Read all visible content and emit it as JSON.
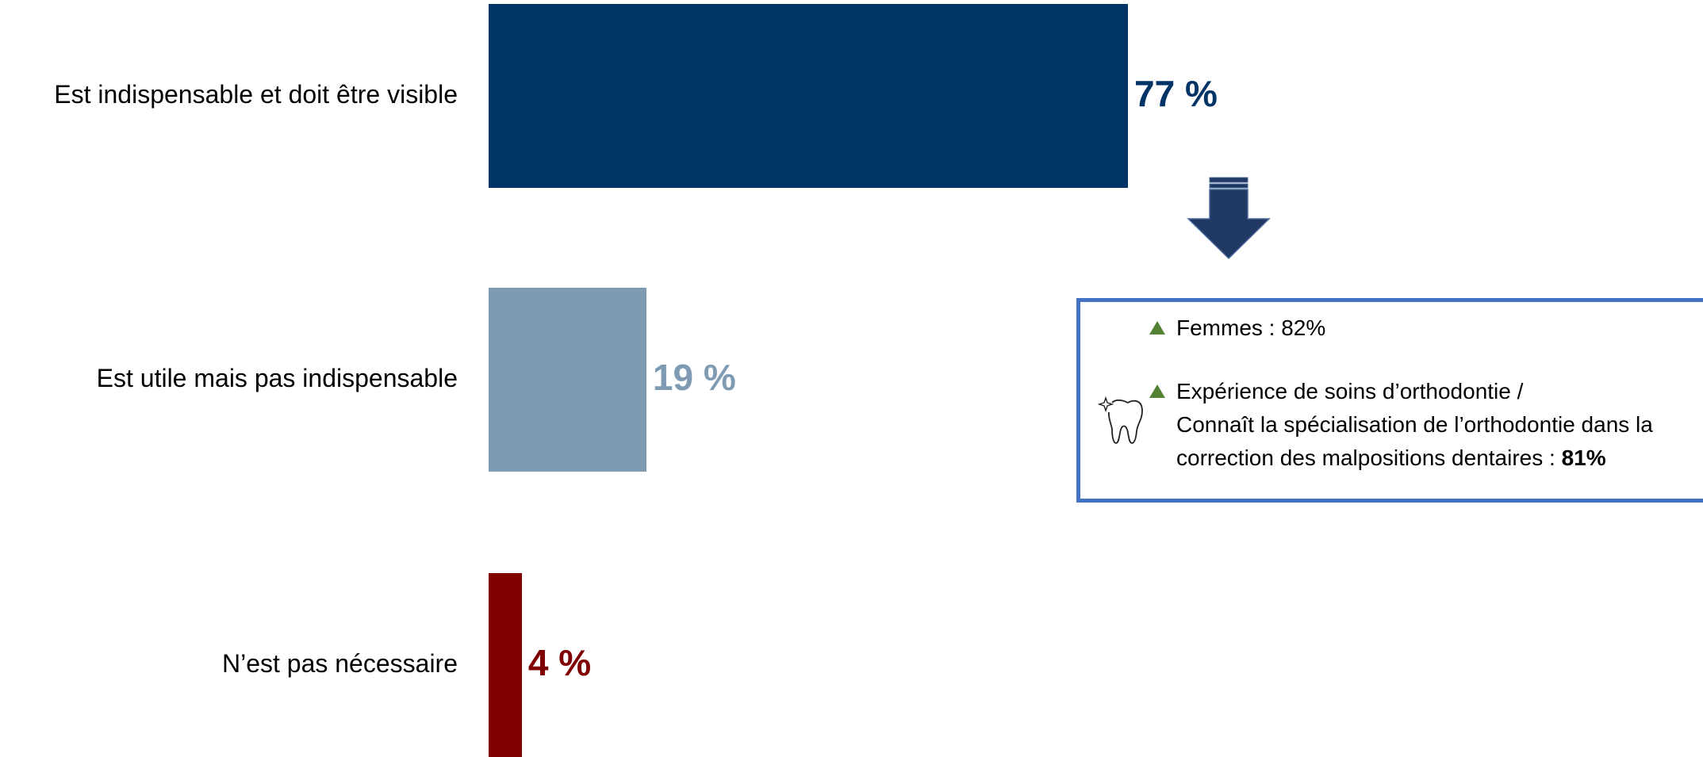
{
  "chart_data": {
    "type": "bar",
    "orientation": "horizontal",
    "title": "",
    "xlabel": "",
    "ylabel": "",
    "xlim": [
      0,
      100
    ],
    "grid": false,
    "categories": [
      "Est indispensable et doit être visible",
      "Est utile mais pas indispensable",
      "N’est pas nécessaire"
    ],
    "values": [
      77,
      19,
      4
    ],
    "value_labels": [
      "77 %",
      "19 %",
      "4 %"
    ],
    "colors": [
      "#003366",
      "#7f9bb3",
      "#7f0000"
    ]
  },
  "callout": {
    "item1": {
      "text": "Femmes : 82%"
    },
    "item2": {
      "line1": "Expérience de soins d’orthodontie /",
      "line2": "Connaît la spécialisation de l’orthodontie dans la",
      "line3_prefix": "correction des malpositions dentaires : ",
      "line3_bold": "81%"
    },
    "triangle_color": "#548235",
    "border_color": "#4472c4",
    "icon": "tooth-icon"
  },
  "arrow": {
    "icon": "down-arrow-icon",
    "color": "#1f3864"
  }
}
